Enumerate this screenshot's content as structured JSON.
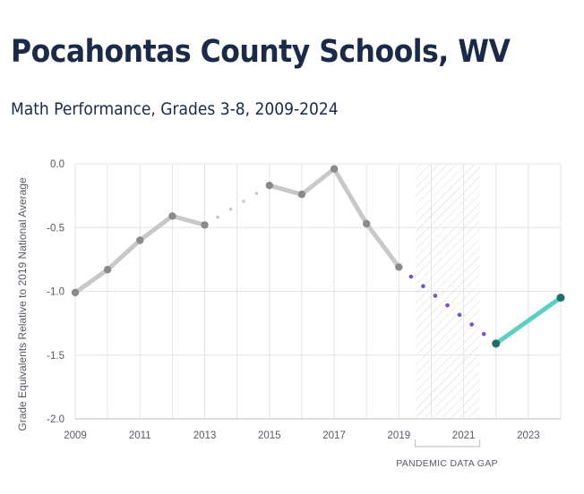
{
  "header": {
    "title": "Pocahontas County Schools, WV",
    "subtitle": "Math Performance, Grades 3-8, 2009-2024"
  },
  "chart_data": {
    "type": "line",
    "ylabel": "Grade Equivalents Relative to 2019 National Average",
    "xlabel": "",
    "ylim": [
      -2.0,
      0.0
    ],
    "xlim": [
      2009,
      2024
    ],
    "y_ticks": [
      "0.0",
      "-0.5",
      "-1.0",
      "-1.5",
      "-2.0"
    ],
    "x_ticks": [
      "2009",
      "2011",
      "2013",
      "2015",
      "2017",
      "2019",
      "2021",
      "2023"
    ],
    "grid": true,
    "annotation": "PANDEMIC DATA GAP",
    "pandemic_gap": [
      2019.5,
      2021.5
    ],
    "series": [
      {
        "segment": "pre-2019",
        "color": "#c8c8c8",
        "points": [
          {
            "x": 2009,
            "y": -1.01
          },
          {
            "x": 2010,
            "y": -0.83
          },
          {
            "x": 2011,
            "y": -0.6
          },
          {
            "x": 2012,
            "y": -0.41
          },
          {
            "x": 2013,
            "y": -0.48
          },
          {
            "x": 2015,
            "y": -0.17
          },
          {
            "x": 2016,
            "y": -0.24
          },
          {
            "x": 2017,
            "y": -0.04
          },
          {
            "x": 2018,
            "y": -0.47
          },
          {
            "x": 2019,
            "y": -0.81
          }
        ]
      },
      {
        "segment": "2022-2024",
        "color": "#5ccfc4",
        "points": [
          {
            "x": 2022,
            "y": -1.41
          },
          {
            "x": 2024,
            "y": -1.05
          }
        ]
      }
    ],
    "colors": {
      "history_line": "#c8c8c8",
      "history_point": "#8a8a8a",
      "recovery_line": "#5ccfc4",
      "recovery_point": "#1e6e6a",
      "pandemic_dots": "#7a4fd0",
      "gap_dots": "#c8c8c8"
    }
  }
}
